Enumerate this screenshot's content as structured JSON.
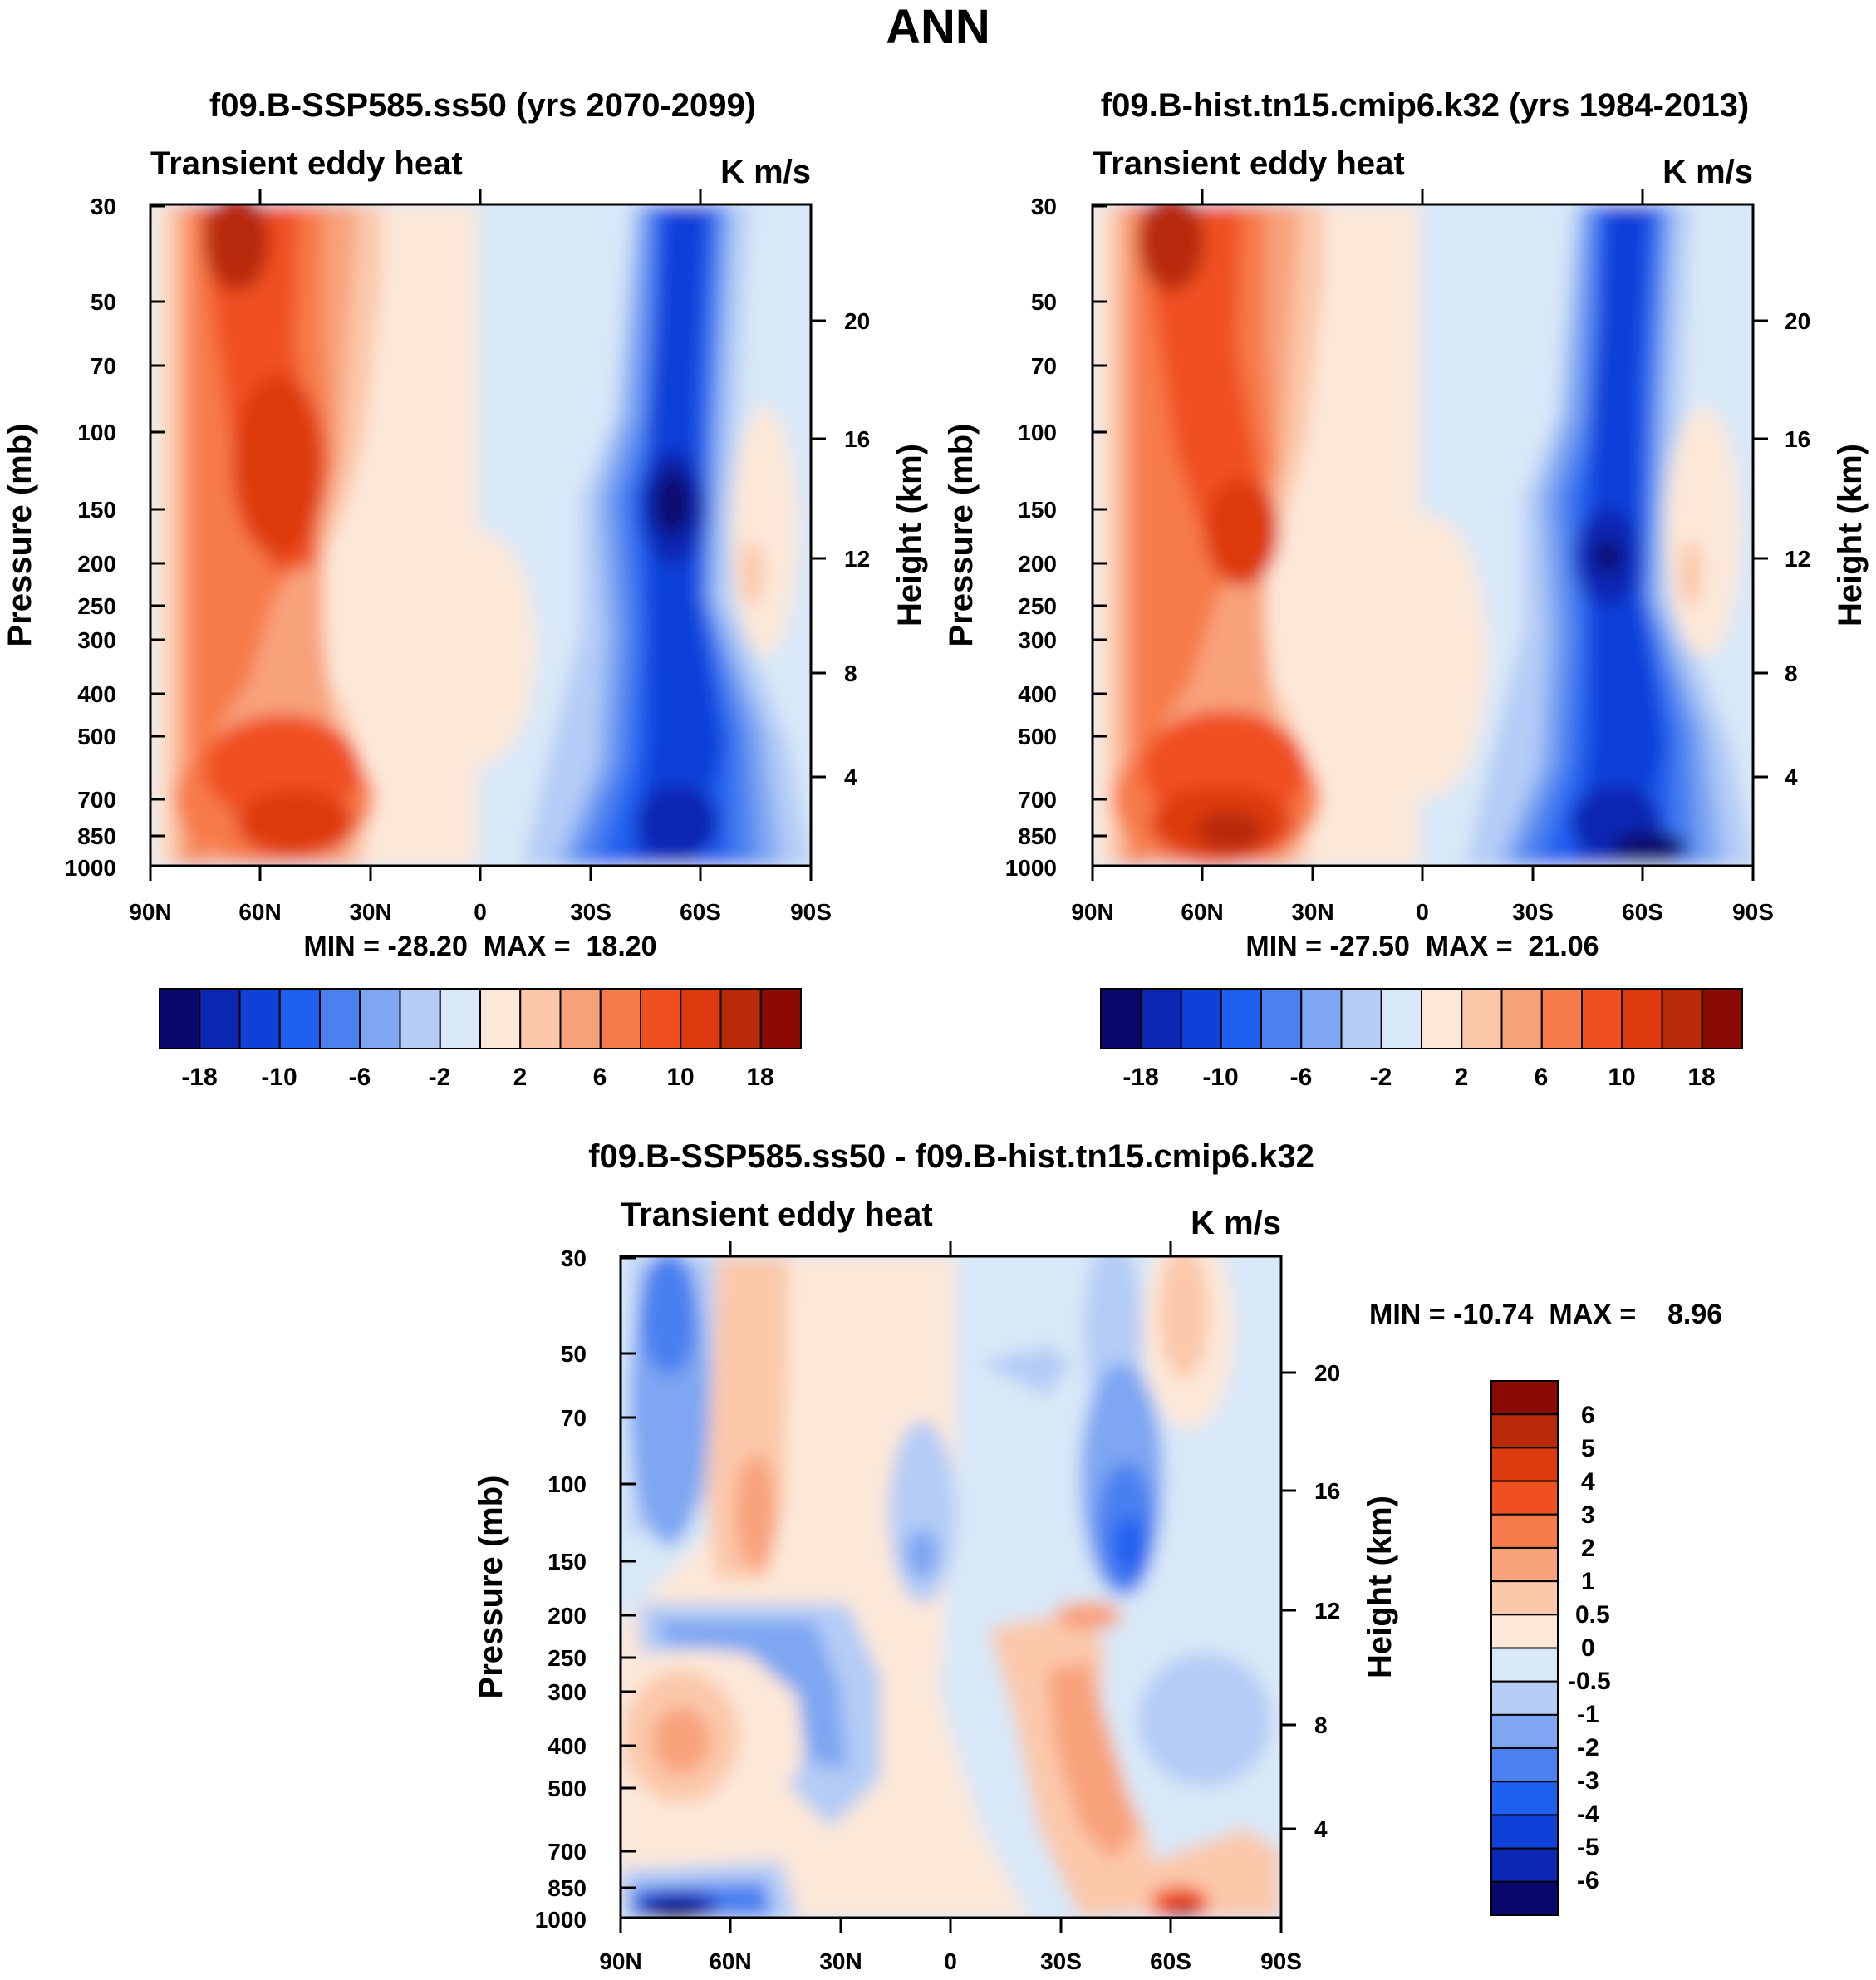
{
  "figure_title": "ANN",
  "chart_data": [
    {
      "type": "heatmap",
      "subtitle": "f09.B-SSP585.ss50 (yrs 2070-2099)",
      "variable": "Transient eddy heat",
      "units": "K m/s",
      "ylabel": "Pressure (mb)",
      "ylabel_right": "Height (km)",
      "x_ticks": [
        "90N",
        "60N",
        "30N",
        "0",
        "30S",
        "60S",
        "90S"
      ],
      "y_ticks": [
        "30",
        "50",
        "70",
        "100",
        "150",
        "200",
        "250",
        "300",
        "400",
        "500",
        "700",
        "850",
        "1000"
      ],
      "height_ticks": [
        "20",
        "16",
        "12",
        "8",
        "4"
      ],
      "min_max": "MIN = -28.20  MAX =  18.20",
      "min": -28.2,
      "max": 18.2,
      "levels": [
        -18,
        -14,
        -10,
        -8,
        -6,
        -4,
        -2,
        0,
        2,
        4,
        6,
        8,
        10,
        14,
        18
      ],
      "colorbar_labels": [
        "-18",
        "-10",
        "-6",
        "-2",
        "2",
        "6",
        "10",
        "18"
      ]
    },
    {
      "type": "heatmap",
      "subtitle": "f09.B-hist.tn15.cmip6.k32 (yrs 1984-2013)",
      "variable": "Transient eddy heat",
      "units": "K m/s",
      "ylabel": "Pressure (mb)",
      "ylabel_right": "Height (km)",
      "x_ticks": [
        "90N",
        "60N",
        "30N",
        "0",
        "30S",
        "60S",
        "90S"
      ],
      "y_ticks": [
        "30",
        "50",
        "70",
        "100",
        "150",
        "200",
        "250",
        "300",
        "400",
        "500",
        "700",
        "850",
        "1000"
      ],
      "height_ticks": [
        "20",
        "16",
        "12",
        "8",
        "4"
      ],
      "min_max": "MIN = -27.50  MAX =  21.06",
      "min": -27.5,
      "max": 21.06,
      "levels": [
        -18,
        -14,
        -10,
        -8,
        -6,
        -4,
        -2,
        0,
        2,
        4,
        6,
        8,
        10,
        14,
        18
      ],
      "colorbar_labels": [
        "-18",
        "-10",
        "-6",
        "-2",
        "2",
        "6",
        "10",
        "18"
      ]
    },
    {
      "type": "heatmap",
      "subtitle": "f09.B-SSP585.ss50 - f09.B-hist.tn15.cmip6.k32",
      "variable": "Transient eddy heat",
      "units": "K m/s",
      "ylabel": "Pressure (mb)",
      "ylabel_right": "Height (km)",
      "x_ticks": [
        "90N",
        "60N",
        "30N",
        "0",
        "30S",
        "60S",
        "90S"
      ],
      "y_ticks": [
        "30",
        "50",
        "70",
        "100",
        "150",
        "200",
        "250",
        "300",
        "400",
        "500",
        "700",
        "850",
        "1000"
      ],
      "height_ticks": [
        "20",
        "16",
        "12",
        "8",
        "4"
      ],
      "min_max": "MIN = -10.74  MAX =    8.96",
      "min": -10.74,
      "max": 8.96,
      "levels": [
        -6,
        -5,
        -4,
        -3,
        -2,
        -1,
        -0.5,
        0,
        0.5,
        1,
        2,
        3,
        4,
        5,
        6
      ],
      "colorbar_labels": [
        "6",
        "5",
        "4",
        "3",
        "2",
        "1",
        "0.5",
        "0",
        "-0.5",
        "-1",
        "-2",
        "-3",
        "-4",
        "-5",
        "-6"
      ]
    }
  ],
  "colors": {
    "palette16": [
      "#08086e",
      "#0a28b4",
      "#0f40d8",
      "#2060f0",
      "#4a80f0",
      "#7ea6f2",
      "#b4ccf6",
      "#d8e8f8",
      "#fde8d8",
      "#fbc8aa",
      "#f8a27c",
      "#f77a4a",
      "#f05020",
      "#de3a10",
      "#b82a08",
      "#8c0a04"
    ]
  }
}
